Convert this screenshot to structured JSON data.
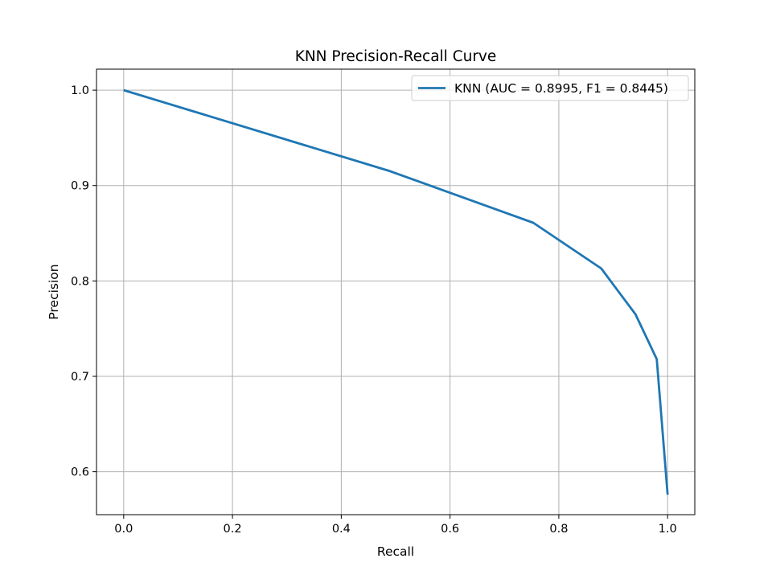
{
  "chart_data": {
    "type": "line",
    "title": "KNN Precision-Recall Curve",
    "xlabel": "Recall",
    "ylabel": "Precision",
    "xlim": [
      -0.05,
      1.05
    ],
    "ylim": [
      0.555,
      1.022
    ],
    "xticks": [
      0.0,
      0.2,
      0.4,
      0.6,
      0.8,
      1.0
    ],
    "xtick_labels": [
      "0.0",
      "0.2",
      "0.4",
      "0.6",
      "0.8",
      "1.0"
    ],
    "yticks": [
      0.6,
      0.7,
      0.8,
      0.9,
      1.0
    ],
    "ytick_labels": [
      "0.6",
      "0.7",
      "0.8",
      "0.9",
      "1.0"
    ],
    "grid": true,
    "legend_position": "top-right",
    "series": [
      {
        "name": "KNN (AUC = 0.8995, F1 = 0.8445)",
        "color": "#1f77b4",
        "x": [
          0.0,
          0.49,
          0.753,
          0.878,
          0.941,
          0.98,
          1.0
        ],
        "y": [
          1.0,
          0.915,
          0.861,
          0.813,
          0.765,
          0.718,
          0.576
        ]
      }
    ]
  }
}
